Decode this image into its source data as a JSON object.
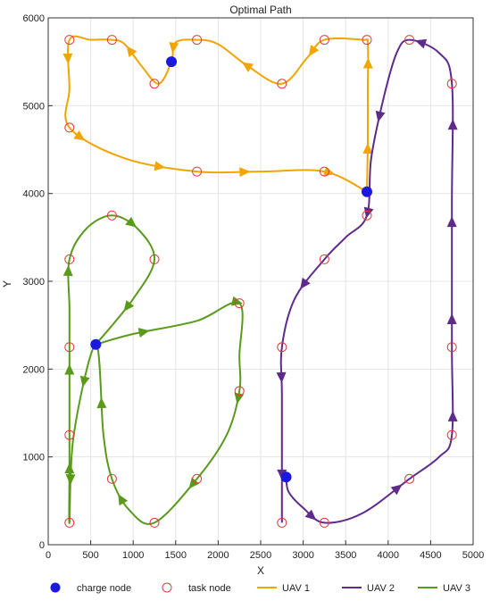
{
  "chart_data": {
    "type": "scatter",
    "title": "Optimal Path",
    "xlabel": "X",
    "ylabel": "Y",
    "xlim": [
      0,
      5000
    ],
    "ylim": [
      0,
      6000
    ],
    "xticks": [
      0,
      500,
      1000,
      1500,
      2000,
      2500,
      3000,
      3500,
      4000,
      4500,
      5000
    ],
    "yticks": [
      0,
      1000,
      2000,
      3000,
      4000,
      5000,
      6000
    ],
    "grid": true,
    "legend_position": "bottom",
    "colors": {
      "charge_node": "#1a1adf",
      "task_node": "#e03c3c",
      "uav1": "#f0a500",
      "uav2": "#5e2a8c",
      "uav3": "#5a9a1a"
    },
    "legend": [
      {
        "key": "charge",
        "label": "charge node"
      },
      {
        "key": "task",
        "label": "task node"
      },
      {
        "key": "uav1",
        "label": "UAV 1"
      },
      {
        "key": "uav2",
        "label": "UAV 2"
      },
      {
        "key": "uav3",
        "label": "UAV 3"
      }
    ],
    "charge_nodes": [
      {
        "x": 1450,
        "y": 5500
      },
      {
        "x": 3750,
        "y": 4020
      },
      {
        "x": 560,
        "y": 2280
      },
      {
        "x": 2800,
        "y": 770
      }
    ],
    "task_nodes": [
      {
        "x": 250,
        "y": 5750
      },
      {
        "x": 750,
        "y": 5750
      },
      {
        "x": 1750,
        "y": 5750
      },
      {
        "x": 3250,
        "y": 5750
      },
      {
        "x": 3750,
        "y": 5750
      },
      {
        "x": 4250,
        "y": 5750
      },
      {
        "x": 1250,
        "y": 5250
      },
      {
        "x": 2750,
        "y": 5250
      },
      {
        "x": 4750,
        "y": 5250
      },
      {
        "x": 250,
        "y": 4750
      },
      {
        "x": 1750,
        "y": 4250
      },
      {
        "x": 3250,
        "y": 4250
      },
      {
        "x": 750,
        "y": 3750
      },
      {
        "x": 3750,
        "y": 3750
      },
      {
        "x": 250,
        "y": 3250
      },
      {
        "x": 1250,
        "y": 3250
      },
      {
        "x": 3250,
        "y": 3250
      },
      {
        "x": 2250,
        "y": 2750
      },
      {
        "x": 250,
        "y": 2250
      },
      {
        "x": 2750,
        "y": 2250
      },
      {
        "x": 4750,
        "y": 2250
      },
      {
        "x": 2250,
        "y": 1750
      },
      {
        "x": 250,
        "y": 1250
      },
      {
        "x": 4750,
        "y": 1250
      },
      {
        "x": 750,
        "y": 750
      },
      {
        "x": 1750,
        "y": 750
      },
      {
        "x": 4250,
        "y": 750
      },
      {
        "x": 250,
        "y": 250
      },
      {
        "x": 1250,
        "y": 250
      },
      {
        "x": 2750,
        "y": 250
      },
      {
        "x": 3250,
        "y": 250
      }
    ],
    "series": [
      {
        "name": "UAV 1",
        "points": [
          [
            3750,
            4020
          ],
          [
            3760,
            4600
          ],
          [
            3760,
            5200
          ],
          [
            3760,
            5700
          ],
          [
            3700,
            5750
          ],
          [
            3250,
            5750
          ],
          [
            3050,
            5550
          ],
          [
            2750,
            5250
          ],
          [
            2350,
            5450
          ],
          [
            2000,
            5700
          ],
          [
            1750,
            5750
          ],
          [
            1500,
            5720
          ],
          [
            1450,
            5500
          ],
          [
            1300,
            5250
          ],
          [
            1100,
            5450
          ],
          [
            900,
            5700
          ],
          [
            750,
            5750
          ],
          [
            500,
            5750
          ],
          [
            250,
            5750
          ],
          [
            250,
            5200
          ],
          [
            250,
            4750
          ],
          [
            900,
            4400
          ],
          [
            1750,
            4250
          ],
          [
            2500,
            4250
          ],
          [
            3250,
            4250
          ],
          [
            3750,
            4020
          ]
        ],
        "arrows": [
          [
            1550,
            4640,
            4740,
            4760,
            3880,
            4380,
            3100,
            3980,
            3010,
            2050,
            4370
          ]
        ]
      },
      {
        "name": "UAV 2",
        "points": [
          [
            2800,
            770
          ],
          [
            2830,
            600
          ],
          [
            3000,
            420
          ],
          [
            3250,
            250
          ],
          [
            3700,
            360
          ],
          [
            4250,
            750
          ],
          [
            4600,
            1000
          ],
          [
            4750,
            1250
          ],
          [
            4750,
            2250
          ],
          [
            4750,
            3900
          ],
          [
            4750,
            5250
          ],
          [
            4600,
            5600
          ],
          [
            4250,
            5750
          ],
          [
            4100,
            5600
          ],
          [
            3950,
            5100
          ],
          [
            3800,
            4400
          ],
          [
            3750,
            3750
          ],
          [
            3500,
            3500
          ],
          [
            3250,
            3250
          ],
          [
            2900,
            2800
          ],
          [
            2750,
            2250
          ],
          [
            2750,
            1700
          ],
          [
            2750,
            700
          ],
          [
            2750,
            250
          ]
        ],
        "arrows": [
          [
            2660,
            3810,
            5030,
            4230,
            4380,
            3340,
            4410,
            5830,
            4310,
            3320,
            5400,
            8160
          ]
        ]
      },
      {
        "name": "UAV 3",
        "points": [
          [
            560,
            2280
          ],
          [
            1000,
            2400
          ],
          [
            1750,
            2550
          ],
          [
            2250,
            2750
          ],
          [
            2250,
            2150
          ],
          [
            2250,
            1750
          ],
          [
            2100,
            1250
          ],
          [
            1750,
            750
          ],
          [
            1250,
            250
          ],
          [
            950,
            400
          ],
          [
            750,
            750
          ],
          [
            650,
            1250
          ],
          [
            560,
            2280
          ],
          [
            300,
            1250
          ],
          [
            250,
            250
          ],
          [
            250,
            900
          ],
          [
            250,
            1750
          ],
          [
            250,
            2250
          ],
          [
            250,
            2700
          ],
          [
            250,
            3250
          ],
          [
            450,
            3600
          ],
          [
            750,
            3750
          ],
          [
            1050,
            3600
          ],
          [
            1250,
            3250
          ],
          [
            1000,
            2800
          ],
          [
            560,
            2280
          ]
        ],
        "arrows": [
          [
            1300,
            4480,
            6060,
            8270,
            9420,
            10380,
            12550,
            14600,
            16030,
            17450,
            19420,
            21830,
            23480
          ]
        ]
      }
    ]
  }
}
